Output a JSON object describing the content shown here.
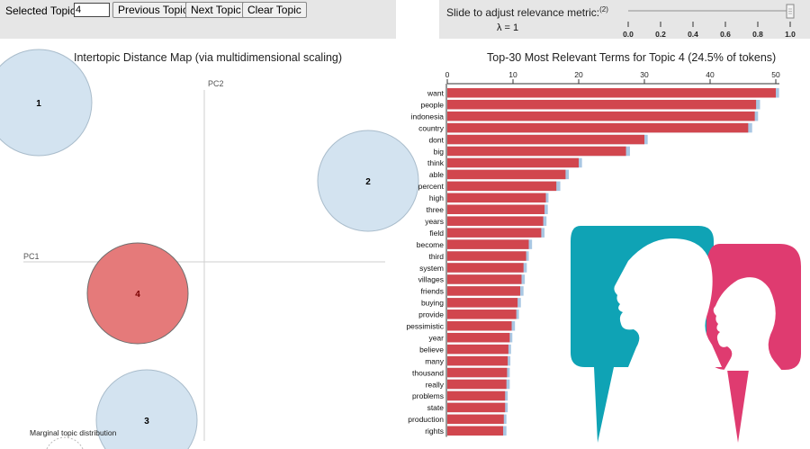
{
  "controls": {
    "selected_topic_label": "Selected Topic:",
    "selected_topic_value": "4",
    "prev_button": "Previous Topic",
    "next_button": "Next Topic",
    "clear_button": "Clear Topic"
  },
  "slider": {
    "label": "Slide to adjust relevance metric:",
    "footnote": "(2)",
    "lambda_text": "λ = 1",
    "value": 1.0,
    "ticks": [
      "0.0",
      "0.2",
      "0.4",
      "0.6",
      "0.8",
      "1.0"
    ]
  },
  "left_panel": {
    "title": "Intertopic Distance Map (via multidimensional scaling)",
    "pc1_label": "PC1",
    "pc2_label": "PC2",
    "marginal_label": "Marginal topic distribution",
    "topics": [
      {
        "label": "1",
        "selected": false
      },
      {
        "label": "2",
        "selected": false
      },
      {
        "label": "3",
        "selected": false
      },
      {
        "label": "4",
        "selected": true
      }
    ]
  },
  "chart_data": {
    "type": "bar",
    "orientation": "horizontal",
    "title": "Top-30 Most Relevant Terms for Topic 4 (24.5% of tokens)",
    "x_ticks": [
      "0",
      "10",
      "20",
      "30",
      "40",
      "50"
    ],
    "xlim": [
      0,
      50
    ],
    "categories": [
      "want",
      "people",
      "indonesia",
      "country",
      "dont",
      "big",
      "think",
      "able",
      "percent",
      "high",
      "three",
      "years",
      "field",
      "become",
      "third",
      "system",
      "villages",
      "friends",
      "buying",
      "provide",
      "pessimistic",
      "year",
      "believe",
      "many",
      "thousand",
      "really",
      "problems",
      "state",
      "production",
      "rights"
    ],
    "series": [
      {
        "values": [
          50.5,
          47.6,
          47.3,
          46.4,
          30.5,
          27.8,
          20.5,
          18.5,
          17.2,
          15.4,
          15.3,
          15.1,
          14.8,
          12.9,
          12.4,
          12.1,
          11.8,
          11.6,
          11.2,
          10.9,
          10.3,
          9.9,
          9.7,
          9.6,
          9.5,
          9.5,
          9.2,
          9.2,
          9.0,
          9.0
        ]
      },
      {
        "values": [
          50.0,
          47.0,
          46.8,
          45.8,
          30.0,
          27.2,
          20.0,
          18.0,
          16.6,
          15.0,
          14.8,
          14.6,
          14.3,
          12.4,
          12.0,
          11.6,
          11.3,
          11.1,
          10.7,
          10.5,
          9.8,
          9.5,
          9.3,
          9.2,
          9.1,
          9.0,
          8.8,
          8.8,
          8.6,
          8.5
        ]
      }
    ],
    "colors": {
      "overall": "#a9c7e3",
      "topic": "#d1464e"
    }
  }
}
